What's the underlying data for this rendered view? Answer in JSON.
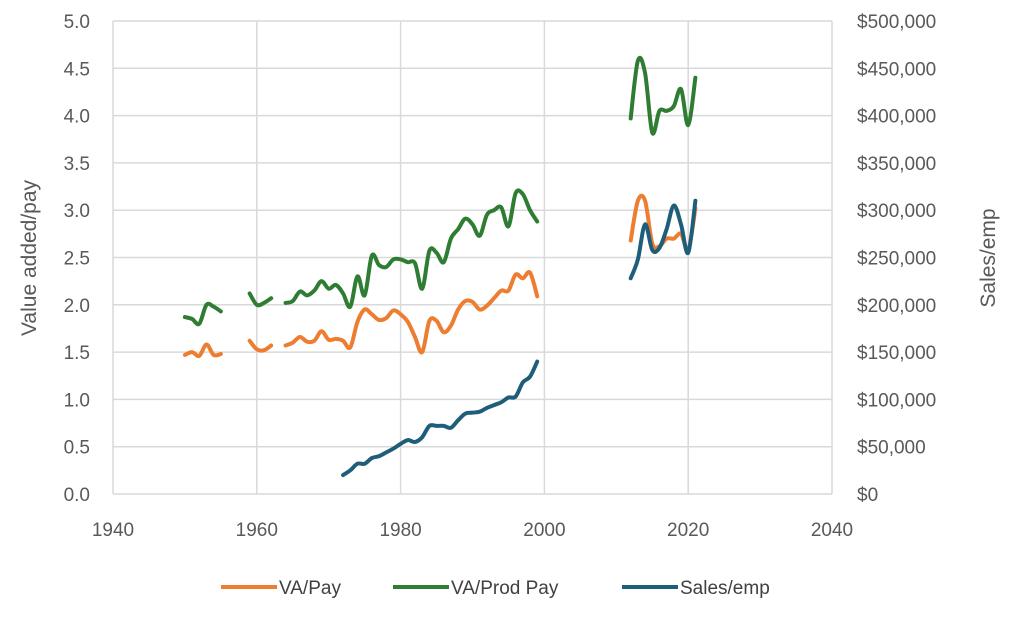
{
  "chart_data": {
    "type": "line",
    "xlabel": "",
    "ylabel": "Value added/pay",
    "y2label": "Sales/emp",
    "xlim": [
      1940,
      2040
    ],
    "ylim": [
      0,
      5
    ],
    "y2lim": [
      0,
      500000
    ],
    "grid": true,
    "legend_position": "bottom",
    "x_ticks": [
      "1940",
      "1960",
      "1980",
      "2000",
      "2020",
      "2040"
    ],
    "y_ticks": [
      "0.0",
      "0.5",
      "1.0",
      "1.5",
      "2.0",
      "2.5",
      "3.0",
      "3.5",
      "4.0",
      "4.5",
      "5.0"
    ],
    "y2_ticks": [
      "$0",
      "$50,000",
      "$100,000",
      "$150,000",
      "$200,000",
      "$250,000",
      "$300,000",
      "$350,000",
      "$400,000",
      "$450,000",
      "$500,000"
    ],
    "series": [
      {
        "name": "VA/Pay",
        "color": "#ED7D31",
        "axis": "left",
        "segments": [
          [
            [
              1950,
              1.47
            ],
            [
              1951,
              1.5
            ],
            [
              1952,
              1.46
            ],
            [
              1953,
              1.58
            ],
            [
              1954,
              1.47
            ],
            [
              1955,
              1.48
            ]
          ],
          [
            [
              1959,
              1.62
            ],
            [
              1960,
              1.53
            ],
            [
              1961,
              1.52
            ],
            [
              1962,
              1.57
            ]
          ],
          [
            [
              1964,
              1.57
            ],
            [
              1965,
              1.6
            ],
            [
              1966,
              1.66
            ],
            [
              1967,
              1.61
            ],
            [
              1968,
              1.62
            ],
            [
              1969,
              1.72
            ],
            [
              1970,
              1.63
            ],
            [
              1971,
              1.64
            ],
            [
              1972,
              1.62
            ],
            [
              1973,
              1.55
            ],
            [
              1974,
              1.82
            ],
            [
              1975,
              1.95
            ],
            [
              1976,
              1.9
            ],
            [
              1977,
              1.84
            ],
            [
              1978,
              1.86
            ],
            [
              1979,
              1.94
            ],
            [
              1980,
              1.9
            ],
            [
              1981,
              1.82
            ],
            [
              1982,
              1.66
            ],
            [
              1983,
              1.5
            ],
            [
              1984,
              1.83
            ],
            [
              1985,
              1.83
            ],
            [
              1986,
              1.71
            ],
            [
              1987,
              1.78
            ],
            [
              1988,
              1.95
            ],
            [
              1989,
              2.04
            ],
            [
              1990,
              2.03
            ],
            [
              1991,
              1.95
            ],
            [
              1992,
              1.99
            ],
            [
              1993,
              2.07
            ],
            [
              1994,
              2.15
            ],
            [
              1995,
              2.15
            ],
            [
              1996,
              2.32
            ],
            [
              1997,
              2.28
            ],
            [
              1998,
              2.34
            ],
            [
              1999,
              2.09
            ]
          ],
          [
            [
              2012,
              2.68
            ],
            [
              2013,
              3.1
            ],
            [
              2014,
              3.1
            ],
            [
              2015,
              2.65
            ],
            [
              2016,
              2.62
            ],
            [
              2017,
              2.7
            ],
            [
              2018,
              2.7
            ],
            [
              2019,
              2.75
            ],
            [
              2020,
              2.58
            ],
            [
              2021,
              3.02
            ]
          ]
        ]
      },
      {
        "name": "VA/Prod Pay",
        "color": "#2E7D32",
        "axis": "left",
        "segments": [
          [
            [
              1950,
              1.87
            ],
            [
              1951,
              1.85
            ],
            [
              1952,
              1.8
            ],
            [
              1953,
              2.0
            ],
            [
              1954,
              1.98
            ],
            [
              1955,
              1.93
            ]
          ],
          [
            [
              1959,
              2.12
            ],
            [
              1960,
              2.0
            ],
            [
              1961,
              2.02
            ],
            [
              1962,
              2.07
            ]
          ],
          [
            [
              1964,
              2.02
            ],
            [
              1965,
              2.04
            ],
            [
              1966,
              2.14
            ],
            [
              1967,
              2.1
            ],
            [
              1968,
              2.15
            ],
            [
              1969,
              2.25
            ],
            [
              1970,
              2.17
            ],
            [
              1971,
              2.21
            ],
            [
              1972,
              2.12
            ],
            [
              1973,
              1.98
            ],
            [
              1974,
              2.3
            ],
            [
              1975,
              2.1
            ],
            [
              1976,
              2.52
            ],
            [
              1977,
              2.42
            ],
            [
              1978,
              2.4
            ],
            [
              1979,
              2.48
            ],
            [
              1980,
              2.48
            ],
            [
              1981,
              2.45
            ],
            [
              1982,
              2.44
            ],
            [
              1983,
              2.17
            ],
            [
              1984,
              2.57
            ],
            [
              1985,
              2.55
            ],
            [
              1986,
              2.45
            ],
            [
              1987,
              2.7
            ],
            [
              1988,
              2.8
            ],
            [
              1989,
              2.91
            ],
            [
              1990,
              2.85
            ],
            [
              1991,
              2.73
            ],
            [
              1992,
              2.95
            ],
            [
              1993,
              3.0
            ],
            [
              1994,
              3.03
            ],
            [
              1995,
              2.83
            ],
            [
              1996,
              3.18
            ],
            [
              1997,
              3.17
            ],
            [
              1998,
              3.0
            ],
            [
              1999,
              2.88
            ]
          ],
          [
            [
              2012,
              3.97
            ],
            [
              2013,
              4.58
            ],
            [
              2014,
              4.45
            ],
            [
              2015,
              3.82
            ],
            [
              2016,
              4.05
            ],
            [
              2017,
              4.05
            ],
            [
              2018,
              4.1
            ],
            [
              2019,
              4.28
            ],
            [
              2020,
              3.9
            ],
            [
              2021,
              4.4
            ]
          ]
        ]
      },
      {
        "name": "Sales/emp",
        "color": "#1F5E7A",
        "axis": "right",
        "segments": [
          [
            [
              1972,
              20000
            ],
            [
              1973,
              25000
            ],
            [
              1974,
              32000
            ],
            [
              1975,
              32000
            ],
            [
              1976,
              38000
            ],
            [
              1977,
              40000
            ],
            [
              1978,
              44000
            ],
            [
              1979,
              48000
            ],
            [
              1980,
              53000
            ],
            [
              1981,
              57000
            ],
            [
              1982,
              55000
            ],
            [
              1983,
              60000
            ],
            [
              1984,
              72000
            ],
            [
              1985,
              72000
            ],
            [
              1986,
              72000
            ],
            [
              1987,
              70000
            ],
            [
              1988,
              78000
            ],
            [
              1989,
              85000
            ],
            [
              1990,
              86000
            ],
            [
              1991,
              87000
            ],
            [
              1992,
              91000
            ],
            [
              1993,
              94000
            ],
            [
              1994,
              97000
            ],
            [
              1995,
              102000
            ],
            [
              1996,
              103000
            ],
            [
              1997,
              118000
            ],
            [
              1998,
              124000
            ],
            [
              1999,
              140000
            ]
          ],
          [
            [
              2012,
              228000
            ],
            [
              2013,
              248000
            ],
            [
              2014,
              285000
            ],
            [
              2015,
              258000
            ],
            [
              2016,
              260000
            ],
            [
              2017,
              280000
            ],
            [
              2018,
              305000
            ],
            [
              2019,
              285000
            ],
            [
              2020,
              255000
            ],
            [
              2021,
              310000
            ]
          ]
        ]
      }
    ]
  }
}
